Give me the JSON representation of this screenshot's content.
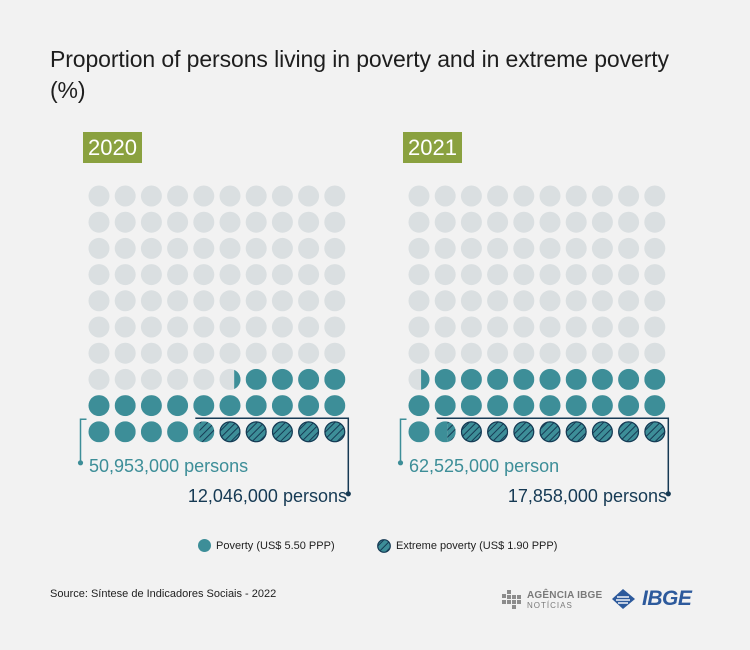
{
  "title": "Proportion of persons living in poverty and in extreme poverty (%)",
  "chart_data": {
    "type": "waffle",
    "unit": "%",
    "grid": "10x10",
    "panels": [
      {
        "year": "2020",
        "poverty_pct": 24.3,
        "extreme_poverty_pct": 5.7,
        "poverty_label": "50,953,000 persons",
        "extreme_label": "12,046,000 persons"
      },
      {
        "year": "2021",
        "poverty_pct": 29.4,
        "extreme_poverty_pct": 8.4,
        "poverty_label": "62,525,000 person",
        "extreme_label": "17,858,000 persons"
      }
    ],
    "series": [
      {
        "name": "Poverty (US$ 5.50 PPP)",
        "color": "#3d8e98",
        "pattern": "solid"
      },
      {
        "name": "Extreme poverty (US$ 1.90 PPP)",
        "color": "#3d8e98",
        "pattern": "hatched"
      }
    ]
  },
  "colors": {
    "empty_dot": "#dadfe1",
    "poverty": "#3d8e98",
    "hatch_line": "#163a54",
    "badge": "#8aa13f",
    "extreme_connector": "#163a54",
    "poverty_connector": "#3d8e98"
  },
  "legend": {
    "poverty": "Poverty (US$ 5.50 PPP)",
    "extreme": "Extreme poverty (US$ 1.90 PPP)"
  },
  "source": "Source: Síntese de Indicadores Sociais - 2022",
  "logos": {
    "agencia_main": "AGÊNCIA IBGE",
    "agencia_sub": "NOTÍCIAS",
    "ibge": "IBGE"
  }
}
